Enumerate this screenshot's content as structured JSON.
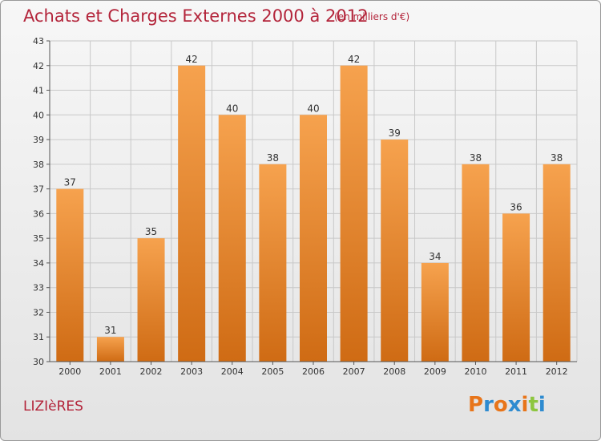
{
  "header": {
    "title": "Achats et Charges Externes 2000 à 2012",
    "unit": "(en milliers d'€)"
  },
  "footer": {
    "place": "LIZIèRES",
    "logo_text": "Proxiti",
    "logo_colors": [
      "#e8751a",
      "#2e8bd0",
      "#e8751a",
      "#2e8bd0",
      "#e8751a",
      "#8dc63f",
      "#2e8bd0"
    ]
  },
  "colors": {
    "accent": "#b3243a",
    "bar_light": "#f6a24e",
    "bar_dark": "#cf6b14",
    "grid": "#c8c8c8"
  },
  "chart_data": {
    "type": "bar",
    "title": "Achats et Charges Externes 2000 à 2012",
    "subtitle": "(en milliers d'€)",
    "xlabel": "",
    "ylabel": "",
    "categories": [
      "2000",
      "2001",
      "2002",
      "2003",
      "2004",
      "2005",
      "2006",
      "2007",
      "2008",
      "2009",
      "2010",
      "2011",
      "2012"
    ],
    "values": [
      37,
      31,
      35,
      42,
      40,
      38,
      40,
      42,
      39,
      34,
      38,
      36,
      38
    ],
    "ylim": [
      30,
      43
    ],
    "yticks": [
      30,
      31,
      32,
      33,
      34,
      35,
      36,
      37,
      38,
      39,
      40,
      41,
      42,
      43
    ],
    "grid": true,
    "legend": "none"
  }
}
